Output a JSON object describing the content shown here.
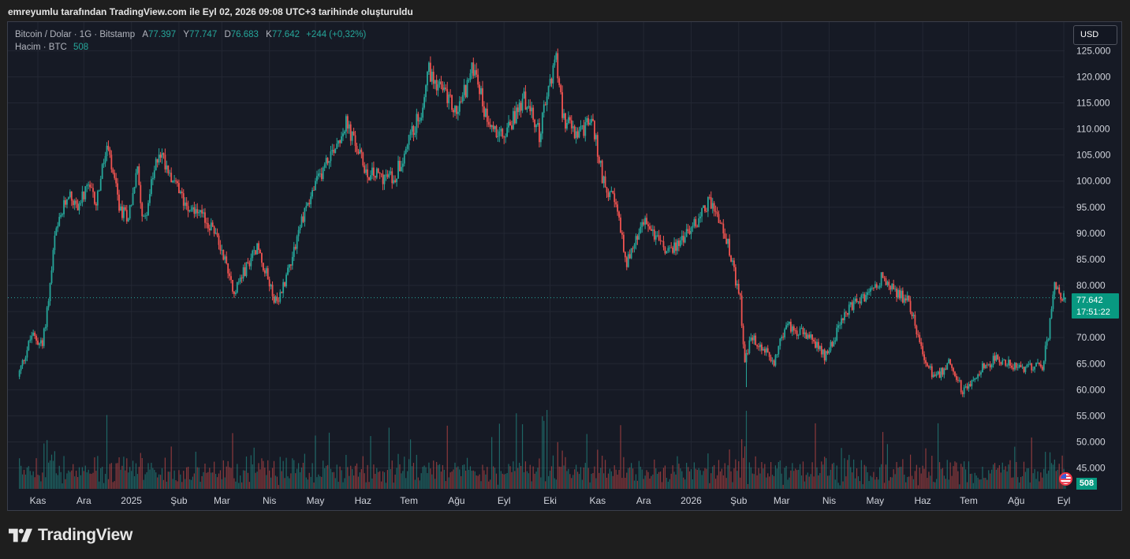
{
  "caption": "emreyumlu tarafından TradingView.com ile Eyl 02, 2026 09:08 UTC+3 tarihinde oluşturuldu",
  "legend": {
    "symbol": "Bitcoin / Dolar · 1G · Bitstamp",
    "open_label": "A",
    "open": "77.397",
    "high_label": "Y",
    "high": "77.747",
    "low_label": "D",
    "low": "76.683",
    "close_label": "K",
    "close": "77.642",
    "change": "+244 (+0,32%)",
    "volume_label": "Hacim · BTC",
    "volume_value": "508"
  },
  "currency_button": "USD",
  "price_tag": {
    "price": "77.642",
    "countdown": "17:51:22"
  },
  "volume_tag": "508",
  "brand": {
    "name": "TradingView",
    "icon": "tradingview-logo-icon"
  },
  "colors": {
    "up": "#26a69a",
    "down": "#ef5350",
    "background": "#161a25",
    "grid": "#232733",
    "text": "#b2b5be"
  },
  "chart_data": {
    "type": "candlestick",
    "title": "Bitcoin / Dolar · 1G · Bitstamp",
    "y_axis": {
      "position": "right",
      "range": [
        41000,
        130500
      ],
      "ticks": [
        45000,
        50000,
        55000,
        60000,
        65000,
        70000,
        75000,
        80000,
        85000,
        90000,
        95000,
        100000,
        105000,
        110000,
        115000,
        120000,
        125000
      ],
      "tick_labels": [
        "45.000",
        "50.000",
        "55.000",
        "60.000",
        "65.000",
        "70.000",
        "75.000",
        "80.000",
        "85.000",
        "90.000",
        "95.000",
        "100.000",
        "105.000",
        "110.000",
        "115.000",
        "120.000",
        "125.000"
      ]
    },
    "x_axis": {
      "tick_labels": [
        "Kas",
        "Ara",
        "2025",
        "Şub",
        "Mar",
        "Nis",
        "May",
        "Haz",
        "Tem",
        "Ağu",
        "Eyl",
        "Eki",
        "Kas",
        "Ara",
        "2026",
        "Şub",
        "Mar",
        "Nis",
        "May",
        "Haz",
        "Tem",
        "Ağu",
        "Eyl"
      ],
      "tick_days": [
        0,
        30,
        61,
        92,
        120,
        151,
        181,
        212,
        242,
        273,
        304,
        334,
        365,
        395,
        426,
        457,
        485,
        516,
        546,
        577,
        607,
        638,
        669
      ],
      "start": "2024-11-01",
      "end": "2026-09-02"
    },
    "grid": true,
    "current_price": 77642,
    "last_candle": {
      "open": 77397,
      "high": 77747,
      "low": 76683,
      "close": 77642,
      "volume": 508
    },
    "price_path": [
      [
        "2024-10-20",
        62500
      ],
      [
        "2024-10-29",
        70500
      ],
      [
        "2024-11-05",
        68500
      ],
      [
        "2024-11-10",
        80000
      ],
      [
        "2024-11-13",
        89000
      ],
      [
        "2024-11-22",
        98000
      ],
      [
        "2024-11-27",
        95000
      ],
      [
        "2024-12-05",
        98500
      ],
      [
        "2024-12-10",
        96000
      ],
      [
        "2024-12-17",
        106500
      ],
      [
        "2024-12-26",
        94000
      ],
      [
        "2024-12-31",
        93500
      ],
      [
        "2025-01-06",
        102000
      ],
      [
        "2025-01-10",
        92000
      ],
      [
        "2025-01-20",
        106000
      ],
      [
        "2025-01-27",
        102000
      ],
      [
        "2025-02-03",
        97000
      ],
      [
        "2025-02-24",
        91000
      ],
      [
        "2025-03-03",
        86000
      ],
      [
        "2025-03-10",
        79000
      ],
      [
        "2025-03-25",
        87500
      ],
      [
        "2025-04-07",
        76000
      ],
      [
        "2025-04-15",
        84000
      ],
      [
        "2025-04-25",
        94500
      ],
      [
        "2025-05-08",
        103000
      ],
      [
        "2025-05-22",
        111000
      ],
      [
        "2025-06-05",
        101500
      ],
      [
        "2025-06-22",
        100500
      ],
      [
        "2025-07-01",
        107000
      ],
      [
        "2025-07-10",
        113500
      ],
      [
        "2025-07-14",
        121500
      ],
      [
        "2025-07-25",
        117000
      ],
      [
        "2025-08-02",
        113000
      ],
      [
        "2025-08-10",
        119500
      ],
      [
        "2025-08-14",
        122500
      ],
      [
        "2025-08-20",
        113500
      ],
      [
        "2025-09-01",
        108000
      ],
      [
        "2025-09-15",
        116000
      ],
      [
        "2025-09-25",
        109000
      ],
      [
        "2025-10-06",
        124500
      ],
      [
        "2025-10-10",
        112500
      ],
      [
        "2025-10-20",
        108500
      ],
      [
        "2025-10-29",
        112000
      ],
      [
        "2025-11-05",
        101000
      ],
      [
        "2025-11-14",
        95000
      ],
      [
        "2025-11-21",
        84500
      ],
      [
        "2025-12-03",
        92500
      ],
      [
        "2025-12-18",
        86000
      ],
      [
        "2026-01-05",
        92000
      ],
      [
        "2026-01-14",
        96500
      ],
      [
        "2026-01-25",
        89000
      ],
      [
        "2026-02-03",
        77000
      ],
      [
        "2026-02-06",
        65000
      ],
      [
        "2026-02-10",
        70000
      ],
      [
        "2026-02-25",
        65500
      ],
      [
        "2026-03-05",
        72500
      ],
      [
        "2026-03-20",
        70000
      ],
      [
        "2026-03-30",
        66500
      ],
      [
        "2026-04-15",
        75500
      ],
      [
        "2026-04-28",
        78500
      ],
      [
        "2026-05-06",
        81500
      ],
      [
        "2026-05-15",
        78500
      ],
      [
        "2026-05-24",
        77000
      ],
      [
        "2026-06-03",
        66000
      ],
      [
        "2026-06-10",
        62000
      ],
      [
        "2026-06-20",
        65500
      ],
      [
        "2026-06-28",
        59500
      ],
      [
        "2026-07-10",
        64000
      ],
      [
        "2026-07-20",
        66000
      ],
      [
        "2026-08-05",
        64000
      ],
      [
        "2026-08-19",
        64500
      ],
      [
        "2026-08-23",
        70500
      ],
      [
        "2026-08-27",
        79500
      ],
      [
        "2026-09-02",
        77642
      ]
    ]
  }
}
